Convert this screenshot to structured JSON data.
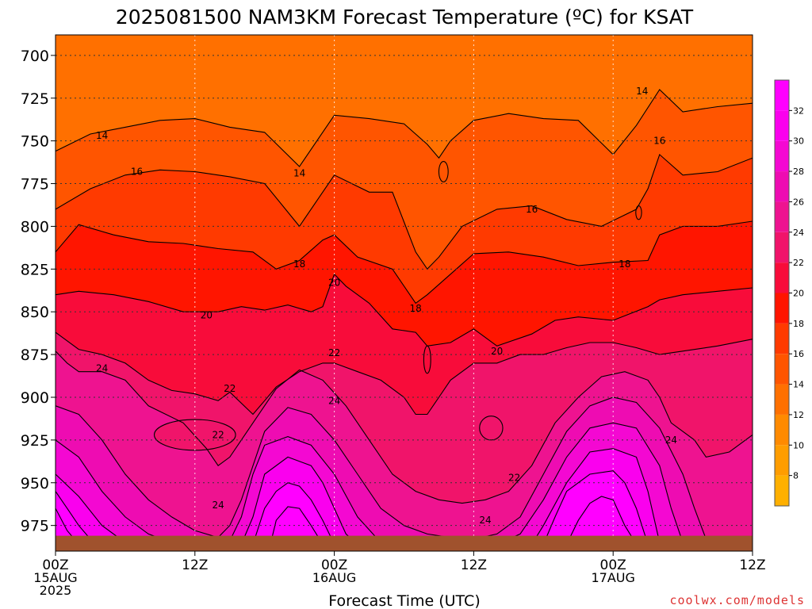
{
  "chart_data": {
    "type": "heatmap",
    "title": "2025081500 NAM3KM Forecast Temperature (ºC) for KSAT",
    "xlabel": "Forecast Time (UTC)",
    "ylabel": "",
    "x_ticks": [
      {
        "hour": 0,
        "lines": [
          "00Z",
          "15AUG",
          "2025"
        ]
      },
      {
        "hour": 12,
        "lines": [
          "12Z"
        ]
      },
      {
        "hour": 24,
        "lines": [
          "00Z",
          "16AUG"
        ]
      },
      {
        "hour": 36,
        "lines": [
          "12Z"
        ]
      },
      {
        "hour": 48,
        "lines": [
          "00Z",
          "17AUG"
        ]
      },
      {
        "hour": 60,
        "lines": [
          "12Z"
        ]
      }
    ],
    "xlim": [
      0,
      60
    ],
    "y_ticks": [
      700,
      725,
      750,
      775,
      800,
      825,
      850,
      875,
      900,
      925,
      950,
      975
    ],
    "ylim": [
      688,
      990
    ],
    "y_axis": "pressure (hPa), inverted",
    "colorbar": {
      "levels": [
        6,
        8,
        10,
        12,
        14,
        16,
        18,
        20,
        22,
        24,
        26,
        28,
        30,
        32,
        34
      ],
      "tick_labels": [
        "8",
        "10",
        "12",
        "14",
        "16",
        "18",
        "20",
        "22",
        "24",
        "26",
        "28",
        "30",
        "32"
      ],
      "colors": [
        "#ffb000",
        "#ff9d00",
        "#ff8a00",
        "#ff7000",
        "#ff5500",
        "#ff3a00",
        "#ff1500",
        "#f80c3a",
        "#f0146a",
        "#ee1390",
        "#ee0cb2",
        "#f408d2",
        "#fa00ee",
        "#ff00ff"
      ]
    },
    "contour_labels": [
      {
        "text": "14",
        "hour": 4.0,
        "p": 747
      },
      {
        "text": "14",
        "hour": 21.0,
        "p": 769
      },
      {
        "text": "14",
        "hour": 50.5,
        "p": 721
      },
      {
        "text": "16",
        "hour": 7.0,
        "p": 768
      },
      {
        "text": "16",
        "hour": 41.0,
        "p": 790
      },
      {
        "text": "16",
        "hour": 52.0,
        "p": 750
      },
      {
        "text": "18",
        "hour": 21.0,
        "p": 822
      },
      {
        "text": "18",
        "hour": 31.0,
        "p": 848
      },
      {
        "text": "18",
        "hour": 49.0,
        "p": 822
      },
      {
        "text": "20",
        "hour": 13.0,
        "p": 852
      },
      {
        "text": "20",
        "hour": 24.0,
        "p": 833
      },
      {
        "text": "20",
        "hour": 38.0,
        "p": 873
      },
      {
        "text": "22",
        "hour": 15.0,
        "p": 895
      },
      {
        "text": "22",
        "hour": 24.0,
        "p": 874
      },
      {
        "text": "22",
        "hour": 14.0,
        "p": 922
      },
      {
        "text": "22",
        "hour": 39.5,
        "p": 947
      },
      {
        "text": "24",
        "hour": 4.0,
        "p": 883
      },
      {
        "text": "24",
        "hour": 24.0,
        "p": 902
      },
      {
        "text": "24",
        "hour": 14.0,
        "p": 963
      },
      {
        "text": "24",
        "hour": 37.0,
        "p": 972
      },
      {
        "text": "24",
        "hour": 53.0,
        "p": 925
      }
    ],
    "series": [
      {
        "level": 14,
        "x": [
          0,
          3,
          6,
          9,
          12,
          15,
          18,
          21,
          24,
          27,
          30,
          32,
          33,
          34,
          36,
          39,
          42,
          45,
          48,
          50,
          52,
          54,
          57,
          60
        ],
        "p": [
          756,
          746,
          742,
          738,
          737,
          742,
          745,
          765,
          735,
          737,
          740,
          752,
          760,
          750,
          738,
          734,
          737,
          738,
          758,
          741,
          720,
          733,
          730,
          728
        ]
      },
      {
        "level": 16,
        "x": [
          0,
          3,
          6,
          9,
          12,
          15,
          18,
          21,
          24,
          27,
          29,
          31,
          32,
          33,
          35,
          38,
          41,
          44,
          47,
          50,
          51,
          52,
          54,
          57,
          60
        ],
        "p": [
          790,
          778,
          770,
          767,
          768,
          771,
          775,
          800,
          770,
          780,
          780,
          815,
          825,
          818,
          800,
          790,
          788,
          796,
          800,
          790,
          778,
          758,
          770,
          768,
          760
        ]
      },
      {
        "level": 18,
        "x": [
          0,
          2,
          5,
          8,
          11,
          14,
          17,
          19,
          21,
          23,
          24,
          26,
          29,
          31,
          32,
          34,
          36,
          39,
          42,
          45,
          48,
          51,
          52,
          54,
          57,
          60
        ],
        "p": [
          815,
          799,
          805,
          809,
          810,
          813,
          815,
          825,
          820,
          808,
          805,
          818,
          825,
          845,
          840,
          828,
          816,
          815,
          818,
          823,
          821,
          820,
          805,
          800,
          800,
          797
        ]
      },
      {
        "level": 20,
        "x": [
          0,
          2,
          5,
          8,
          11,
          14,
          16,
          18,
          20,
          22,
          23,
          24,
          25,
          27,
          29,
          31,
          32,
          34,
          36,
          38,
          41,
          43,
          45,
          48,
          51,
          52,
          54,
          57,
          60
        ],
        "p": [
          840,
          838,
          840,
          844,
          850,
          850,
          847,
          849,
          846,
          850,
          847,
          828,
          835,
          845,
          860,
          862,
          870,
          868,
          860,
          870,
          863,
          855,
          853,
          855,
          847,
          843,
          840,
          838,
          836
        ]
      },
      {
        "level": 22,
        "x": [
          0,
          2,
          4,
          6,
          8,
          10,
          12,
          14,
          15,
          17,
          18,
          19,
          21,
          23,
          24,
          26,
          28,
          30,
          31,
          32,
          33,
          34,
          36,
          38,
          40,
          42,
          44,
          46,
          48,
          50,
          52,
          54,
          57,
          60
        ],
        "p": [
          862,
          872,
          875,
          880,
          890,
          896,
          898,
          902,
          897,
          910,
          902,
          894,
          885,
          880,
          880,
          885,
          890,
          900,
          910,
          910,
          900,
          890,
          880,
          880,
          875,
          875,
          871,
          868,
          868,
          871,
          875,
          873,
          870,
          866
        ]
      },
      {
        "level": 24,
        "x": [
          0,
          1,
          2,
          4,
          6,
          8,
          11,
          13,
          14,
          15,
          17,
          19,
          21,
          23,
          25,
          27,
          29,
          31,
          33,
          35,
          37,
          39,
          41,
          43,
          45,
          47,
          49,
          51,
          52,
          53,
          55,
          56,
          58,
          60
        ],
        "p": [
          873,
          880,
          885,
          885,
          890,
          905,
          915,
          930,
          940,
          935,
          915,
          895,
          884,
          890,
          905,
          925,
          945,
          955,
          960,
          962,
          960,
          955,
          940,
          915,
          900,
          888,
          885,
          890,
          900,
          915,
          925,
          935,
          932,
          922
        ]
      },
      {
        "level": 26,
        "x": [
          0,
          2,
          4,
          6,
          8,
          10,
          12,
          14,
          15,
          16,
          18,
          20,
          22,
          24,
          26,
          28,
          30,
          32,
          34,
          36,
          38,
          40,
          42,
          44,
          46,
          48,
          50,
          52,
          54,
          55,
          56
        ],
        "p": [
          905,
          910,
          925,
          945,
          960,
          970,
          978,
          982,
          975,
          960,
          920,
          906,
          910,
          925,
          945,
          965,
          975,
          980,
          982,
          983,
          980,
          970,
          945,
          920,
          905,
          900,
          903,
          918,
          945,
          965,
          983
        ]
      },
      {
        "level": 28,
        "x": [
          0,
          2,
          4,
          6,
          8,
          10,
          12,
          14,
          15,
          16,
          17,
          18,
          20,
          22,
          24,
          26,
          28,
          38,
          40,
          42,
          44,
          46,
          48,
          50,
          52,
          53,
          54
        ],
        "p": [
          925,
          935,
          955,
          970,
          980,
          985,
          986,
          986,
          984,
          970,
          945,
          928,
          923,
          928,
          945,
          970,
          985,
          986,
          980,
          960,
          935,
          918,
          915,
          918,
          940,
          965,
          985
        ]
      },
      {
        "level": 30,
        "x": [
          0,
          2,
          4,
          6,
          8,
          16,
          17,
          18,
          20,
          22,
          23,
          24,
          25,
          26,
          41,
          42,
          44,
          46,
          48,
          50,
          51,
          52
        ],
        "p": [
          945,
          958,
          975,
          985,
          986,
          986,
          970,
          945,
          935,
          940,
          950,
          965,
          980,
          986,
          986,
          975,
          950,
          932,
          930,
          935,
          955,
          985
        ]
      },
      {
        "level": 32,
        "x": [
          0,
          1,
          2,
          3,
          4,
          17,
          18,
          19,
          20,
          21,
          22,
          23,
          24,
          42,
          43,
          44,
          46,
          48,
          49,
          50,
          51
        ],
        "p": [
          955,
          965,
          975,
          983,
          986,
          986,
          965,
          955,
          950,
          952,
          960,
          972,
          986,
          986,
          970,
          955,
          945,
          943,
          950,
          965,
          986
        ]
      },
      {
        "level": 34,
        "x": [
          0,
          1,
          2,
          18.5,
          19,
          20,
          21,
          22,
          23,
          44,
          45,
          46,
          47,
          48,
          49,
          50
        ],
        "p": [
          965,
          978,
          986,
          986,
          972,
          964,
          965,
          975,
          986,
          986,
          972,
          962,
          958,
          960,
          975,
          986
        ]
      }
    ],
    "blobs": [
      {
        "level": 22,
        "hour": 12.0,
        "p": 922,
        "rx_hours": 3.5,
        "ry_hpa": 9
      },
      {
        "level": 22,
        "hour": 37.5,
        "p": 918,
        "rx_hours": 1.0,
        "ry_hpa": 7
      },
      {
        "level": 14,
        "hour": 33.4,
        "p": 768,
        "rx_hours": 0.4,
        "ry_hpa": 6
      },
      {
        "level": 16,
        "hour": 50.2,
        "p": 792,
        "rx_hours": 0.25,
        "ry_hpa": 4
      },
      {
        "level": 20,
        "hour": 32.0,
        "p": 878,
        "rx_hours": 0.3,
        "ry_hpa": 8
      }
    ],
    "ground": {
      "p_top": 981,
      "color": "#a0522d"
    },
    "grid": true,
    "watermark": "coolwx.com/models"
  }
}
